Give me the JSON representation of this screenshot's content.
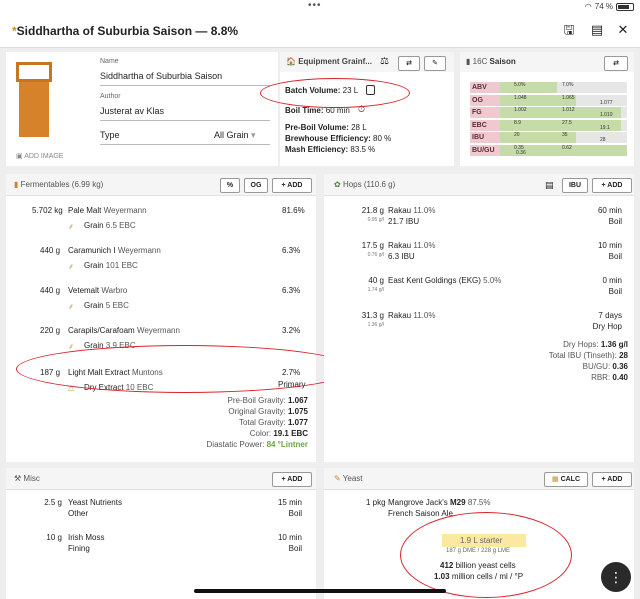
{
  "status": {
    "battery": "74 %"
  },
  "title": {
    "star": "*",
    "text": "Siddhartha of Suburbia Saison — 8.8%"
  },
  "recipe": {
    "name_label": "Name",
    "name": "Siddhartha of Suburbia Saison",
    "author_label": "Author",
    "author": "Justerat av Klas",
    "type_label": "Type",
    "type": "All Grain",
    "add_image": "ADD IMAGE"
  },
  "equipment": {
    "header": "Equipment Grainf...",
    "batch_volume_label": "Batch Volume:",
    "batch_volume": "23 L",
    "boil_time_label": "Boil Time:",
    "boil_time": "60 min",
    "pre_boil_label": "Pre-Boil Volume:",
    "pre_boil": "28 L",
    "brewhouse_label": "Brewhouse Efficiency:",
    "brewhouse": "80 %",
    "mash_label": "Mash Efficiency:",
    "mash": "83.5 %"
  },
  "style": {
    "header_code": "16C",
    "header_name": "Saison",
    "rows": [
      {
        "label": "ABV",
        "min": "5.0%",
        "max": "7.0%",
        "value": "",
        "fill": [
          0.0,
          0.45
        ]
      },
      {
        "label": "OG",
        "min": "1.048",
        "max": "1.065",
        "value": "1.077",
        "fill": [
          0.0,
          0.6
        ]
      },
      {
        "label": "FG",
        "min": "1.002",
        "max": "1.012",
        "value": "1.010",
        "fill": [
          0.0,
          0.95
        ]
      },
      {
        "label": "EBC",
        "min": "8.9",
        "max": "27.5",
        "value": "19.1",
        "fill": [
          0.0,
          0.95
        ]
      },
      {
        "label": "IBU",
        "min": "20",
        "max": "35",
        "value": "28",
        "fill": [
          0.0,
          0.6
        ]
      },
      {
        "label": "BU/GU",
        "min": "0.35",
        "max": "0.62",
        "value": "0.36",
        "fill": [
          0.0,
          1.0
        ]
      }
    ]
  },
  "fermentables": {
    "header": "Fermentables (6.99 kg)",
    "btn_pct": "%",
    "btn_og": "OG",
    "btn_add": "+ ADD",
    "items": [
      {
        "amount": "5.702 kg",
        "name": "Pale Malt",
        "brand": "Weyermann",
        "pct": "81.6%",
        "type": "Grain",
        "color": "6.5 EBC"
      },
      {
        "amount": "440 g",
        "name": "Caramunich I",
        "brand": "Weyermann",
        "pct": "6.3%",
        "type": "Grain",
        "color": "101 EBC"
      },
      {
        "amount": "440 g",
        "name": "Vetemalt",
        "brand": "Warbro",
        "pct": "6.3%",
        "type": "Grain",
        "color": "5 EBC"
      },
      {
        "amount": "220 g",
        "name": "Carapils/Carafoam",
        "brand": "Weyermann",
        "pct": "3.2%",
        "type": "Grain",
        "color": "3.9 EBC"
      },
      {
        "amount": "187 g",
        "name": "Light Malt Extract",
        "brand": "Muntons",
        "pct": "2.7%",
        "type": "Dry Extract",
        "color": "10 EBC",
        "note": "Primary"
      }
    ],
    "summary": [
      {
        "label": "Pre-Boil Gravity:",
        "value": "1.067"
      },
      {
        "label": "Original Gravity:",
        "value": "1.075"
      },
      {
        "label": "Total Gravity:",
        "value": "1.077"
      },
      {
        "label": "Color:",
        "value": "19.1 EBC"
      },
      {
        "label": "Diastatic Power:",
        "value": "84 °Lintner"
      }
    ]
  },
  "hops": {
    "header": "Hops (110.6 g)",
    "btn_ibu": "IBU",
    "btn_add": "+ ADD",
    "items": [
      {
        "amount": "21.8 g",
        "density": "0.95 g/l",
        "name": "Rakau",
        "alpha": "11.0%",
        "ibu": "21.7 IBU",
        "time": "60 min",
        "use": "Boil"
      },
      {
        "amount": "17.5 g",
        "density": "0.76 g/l",
        "name": "Rakau",
        "alpha": "11.0%",
        "ibu": "6.3 IBU",
        "time": "10 min",
        "use": "Boil"
      },
      {
        "amount": "40 g",
        "density": "1.74 g/l",
        "name": "East Kent Goldings (EKG)",
        "alpha": "5.0%",
        "ibu": "",
        "time": "0 min",
        "use": "Boil"
      },
      {
        "amount": "31.3 g",
        "density": "1.36 g/l",
        "name": "Rakau",
        "alpha": "11.0%",
        "ibu": "",
        "time": "7 days",
        "use": "Dry Hop"
      }
    ],
    "summary": [
      {
        "label": "Dry Hops:",
        "value": "1.36 g/l"
      },
      {
        "label": "Total IBU (Tinseth):",
        "value": "28"
      },
      {
        "label": "BU/GU:",
        "value": "0.36"
      },
      {
        "label": "RBR:",
        "value": "0.40"
      }
    ]
  },
  "misc": {
    "header": "Misc",
    "btn_add": "+ ADD",
    "items": [
      {
        "amount": "2.5 g",
        "name": "Yeast Nutrients",
        "use": "Other",
        "time": "15 min",
        "stage": "Boil"
      },
      {
        "amount": "10 g",
        "name": "Irish Moss",
        "use": "Fining",
        "time": "10 min",
        "stage": "Boil"
      }
    ]
  },
  "yeast": {
    "header": "Yeast",
    "btn_calc": "CALC",
    "btn_add": "+ ADD",
    "amount": "1 pkg",
    "brand": "Mangrove Jack's",
    "name": "M29",
    "atten": "87.5%",
    "desc": "French Saison Ale",
    "starter": "1.9 L starter",
    "starter_sub": "187 g DME / 228 g LME",
    "cells_num": "412",
    "cells_text": "billion yeast cells",
    "rate_num": "1.03",
    "rate_text": "million cells / ml / °P"
  }
}
